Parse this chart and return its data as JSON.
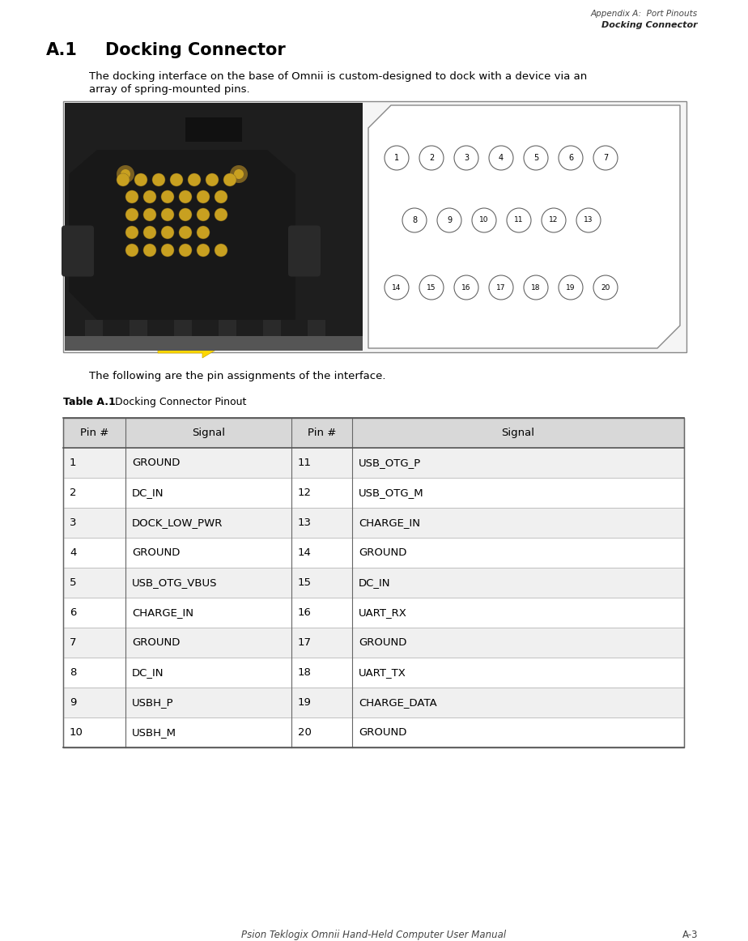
{
  "header_line1": "Appendix A:  Port Pinouts",
  "header_line2": "Docking Connector",
  "body_text1": "The docking interface on the base of Omnii is custom-designed to dock with a device via an",
  "body_text2": "array of spring-mounted pins.",
  "following_text": "The following are the pin assignments of the interface.",
  "table_title_bold": "Table A.1",
  "table_title_normal": "   Docking Connector Pinout",
  "footer_text": "Psion Teklogix Omnii Hand-Held Computer User Manual",
  "footer_page": "A-3",
  "table_headers": [
    "Pin #",
    "Signal",
    "Pin #",
    "Signal"
  ],
  "table_data": [
    [
      "1",
      "GROUND",
      "11",
      "USB_OTG_P"
    ],
    [
      "2",
      "DC_IN",
      "12",
      "USB_OTG_M"
    ],
    [
      "3",
      "DOCK_LOW_PWR",
      "13",
      "CHARGE_IN"
    ],
    [
      "4",
      "GROUND",
      "14",
      "GROUND"
    ],
    [
      "5",
      "USB_OTG_VBUS",
      "15",
      "DC_IN"
    ],
    [
      "6",
      "CHARGE_IN",
      "16",
      "UART_RX"
    ],
    [
      "7",
      "GROUND",
      "17",
      "GROUND"
    ],
    [
      "8",
      "DC_IN",
      "18",
      "UART_TX"
    ],
    [
      "9",
      "USBH_P",
      "19",
      "CHARGE_DATA"
    ],
    [
      "10",
      "USBH_M",
      "20",
      "GROUND"
    ]
  ],
  "bg_color": "#ffffff",
  "pin_diagram_rows": [
    [
      1,
      2,
      3,
      4,
      5,
      6,
      7
    ],
    [
      8,
      9,
      10,
      11,
      12,
      13
    ],
    [
      14,
      15,
      16,
      17,
      18,
      19,
      20
    ]
  ]
}
